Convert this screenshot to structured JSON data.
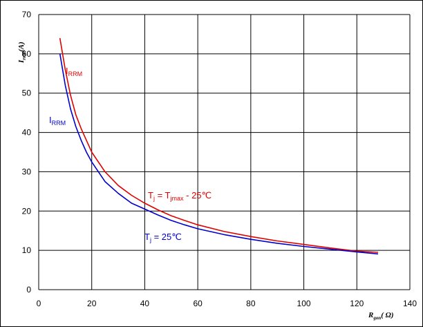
{
  "chart_data": {
    "type": "line",
    "xlim": [
      0,
      140
    ],
    "ylim": [
      0,
      70
    ],
    "x_ticks": [
      "0",
      "20",
      "40",
      "60",
      "80",
      "100",
      "120",
      "140"
    ],
    "y_ticks": [
      "0",
      "10",
      "20",
      "30",
      "40",
      "50",
      "60",
      "70"
    ],
    "grid": true,
    "xlabel": {
      "main": "R",
      "sub": "gon",
      "paren_open": "( ",
      "unit": "Ω",
      "paren_close": ")"
    },
    "ylabel": {
      "main": "I",
      "sub": "rrM",
      "unit": "(A)"
    },
    "series": [
      {
        "label_main": "I",
        "label_sub": "RRM",
        "condition": {
          "t": "T",
          "t_sub": "j",
          "eq": " = ",
          "tmax": "T",
          "tmax_sub": "jmax",
          "rest": " - 25℃"
        },
        "color": "#e00000",
        "points": [
          [
            8,
            64
          ],
          [
            10,
            56
          ],
          [
            12,
            49.5
          ],
          [
            14,
            44.5
          ],
          [
            16,
            41
          ],
          [
            18,
            38
          ],
          [
            20,
            35
          ],
          [
            25,
            30
          ],
          [
            30,
            26.5
          ],
          [
            35,
            24
          ],
          [
            40,
            22
          ],
          [
            45,
            20.3
          ],
          [
            50,
            18.8
          ],
          [
            55,
            17.6
          ],
          [
            60,
            16.5
          ],
          [
            70,
            14.8
          ],
          [
            80,
            13.5
          ],
          [
            90,
            12.4
          ],
          [
            100,
            11.5
          ],
          [
            110,
            10.6
          ],
          [
            120,
            9.8
          ],
          [
            128,
            9.5
          ]
        ]
      },
      {
        "label_main": "I",
        "label_sub": "RRM",
        "condition": {
          "t": "T",
          "t_sub": "j",
          "rest": " = 25℃"
        },
        "color": "#0000cc",
        "points": [
          [
            8,
            60
          ],
          [
            10,
            52
          ],
          [
            12,
            46
          ],
          [
            14,
            41.5
          ],
          [
            16,
            38
          ],
          [
            18,
            35
          ],
          [
            20,
            32.5
          ],
          [
            25,
            27.5
          ],
          [
            30,
            24.5
          ],
          [
            35,
            22
          ],
          [
            40,
            20.5
          ],
          [
            45,
            19
          ],
          [
            50,
            17.6
          ],
          [
            55,
            16.5
          ],
          [
            60,
            15.5
          ],
          [
            70,
            14
          ],
          [
            80,
            12.8
          ],
          [
            90,
            11.8
          ],
          [
            100,
            11
          ],
          [
            110,
            10.3
          ],
          [
            120,
            9.6
          ],
          [
            128,
            9.1
          ]
        ]
      }
    ]
  }
}
